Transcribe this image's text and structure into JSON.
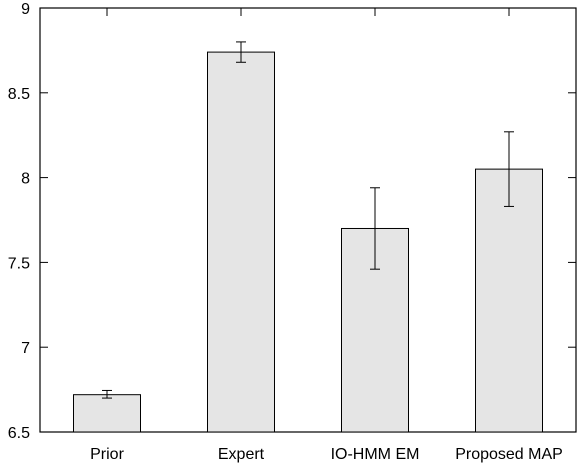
{
  "chart_data": {
    "type": "bar",
    "categories": [
      "Prior",
      "Expert",
      "IO-HMM EM",
      "Proposed MAP"
    ],
    "values": [
      6.72,
      8.74,
      7.7,
      8.05
    ],
    "error_low": [
      6.7,
      8.68,
      7.46,
      7.83
    ],
    "error_high": [
      6.745,
      8.8,
      7.94,
      8.27
    ],
    "ylim": [
      6.5,
      9
    ],
    "yticks": [
      "6.5",
      "7",
      "7.5",
      "8",
      "8.5",
      "9"
    ],
    "title": "",
    "xlabel": "",
    "ylabel": "",
    "grid": false,
    "bar_color": "#e5e5e5",
    "edge_color": "#000000"
  }
}
